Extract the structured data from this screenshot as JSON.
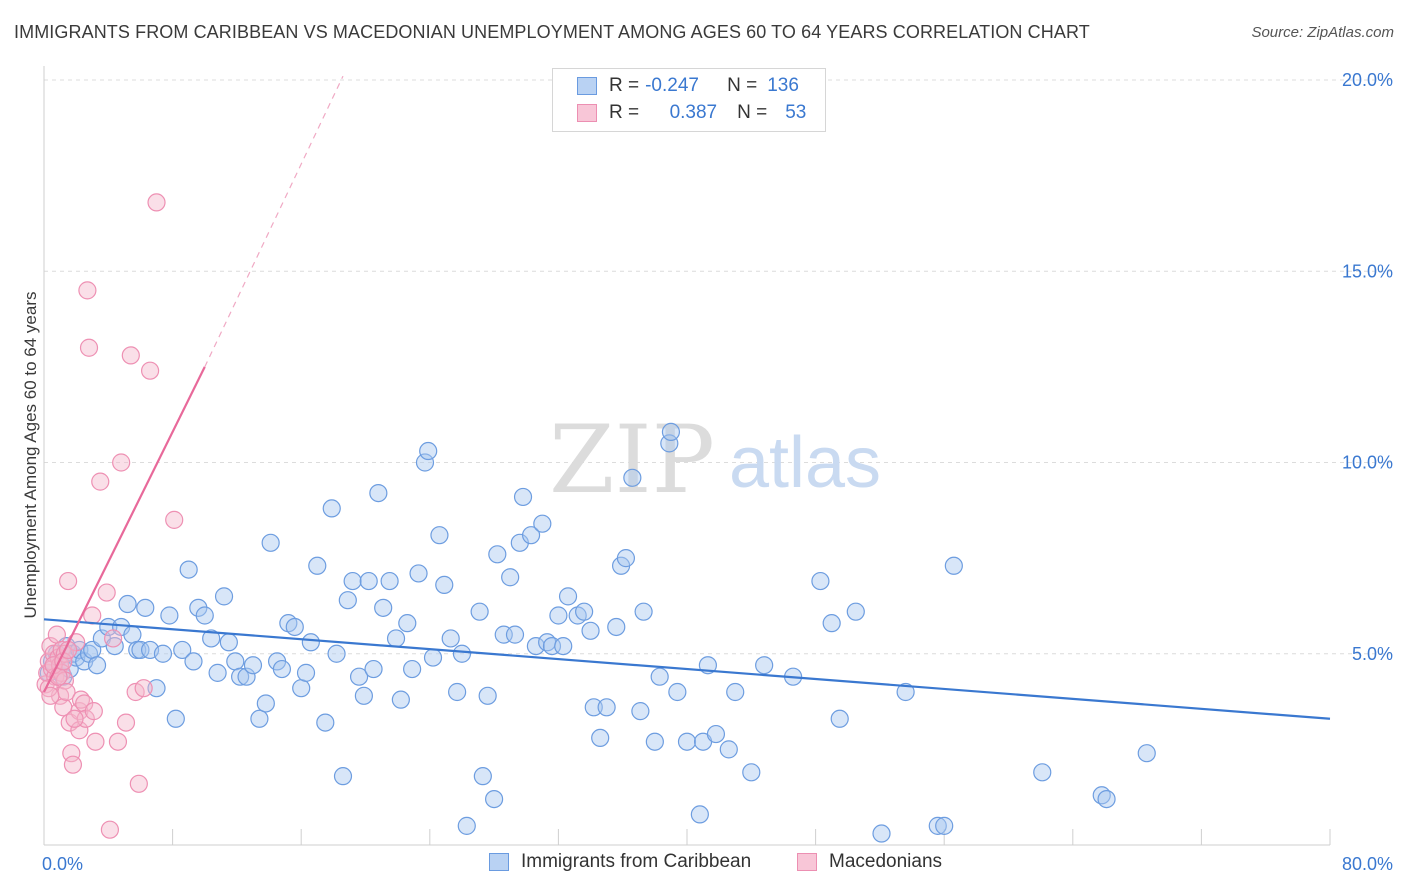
{
  "title": "IMMIGRANTS FROM CARIBBEAN VS MACEDONIAN UNEMPLOYMENT AMONG AGES 60 TO 64 YEARS CORRELATION CHART",
  "source": "Source: ZipAtlas.com",
  "watermark": {
    "zip": "ZIP",
    "atlas": "atlas"
  },
  "legend_top": {
    "rows": [
      {
        "r_label": "R =",
        "r_value": "-0.247",
        "n_label": "N =",
        "n_value": "136"
      },
      {
        "r_label": "R =",
        "r_value": "0.387",
        "n_label": "N =",
        "n_value": "53"
      }
    ]
  },
  "colors": {
    "blue": "#3a78d0",
    "blue_fill": "#a9c7f0",
    "pink": "#e8699a",
    "pink_fill": "#f5b8cc",
    "grid": "#dcdcdc",
    "axis_text": "#3a78d0"
  },
  "chart_data": {
    "type": "scatter",
    "title": "IMMIGRANTS FROM CARIBBEAN VS MACEDONIAN UNEMPLOYMENT AMONG AGES 60 TO 64 YEARS CORRELATION CHART",
    "xlabel": "",
    "ylabel": "Unemployment Among Ages 60 to 64 years",
    "xlim": [
      0,
      80
    ],
    "ylim": [
      0,
      20
    ],
    "x_tick_labels": [
      "0.0%",
      "80.0%"
    ],
    "y_tick_labels": [
      "5.0%",
      "10.0%",
      "15.0%",
      "20.0%"
    ],
    "y_ticks": [
      5,
      10,
      15,
      20
    ],
    "series": [
      {
        "name": "Immigrants from Caribbean",
        "R": -0.247,
        "N": 136,
        "trend": {
          "x": [
            0,
            80
          ],
          "y": [
            5.9,
            3.3
          ]
        },
        "points": [
          [
            0.3,
            4.5
          ],
          [
            0.5,
            4.8
          ],
          [
            0.8,
            5.0
          ],
          [
            1.0,
            4.7
          ],
          [
            1.2,
            4.4
          ],
          [
            1.4,
            5.2
          ],
          [
            1.6,
            4.6
          ],
          [
            1.8,
            5.0
          ],
          [
            2.0,
            4.9
          ],
          [
            2.2,
            5.1
          ],
          [
            2.5,
            4.8
          ],
          [
            2.8,
            5.0
          ],
          [
            3.0,
            5.1
          ],
          [
            3.3,
            4.7
          ],
          [
            3.6,
            5.4
          ],
          [
            4.0,
            5.7
          ],
          [
            4.4,
            5.2
          ],
          [
            4.8,
            5.7
          ],
          [
            5.2,
            6.3
          ],
          [
            5.5,
            5.5
          ],
          [
            5.8,
            5.1
          ],
          [
            6.0,
            5.1
          ],
          [
            6.3,
            6.2
          ],
          [
            6.6,
            5.1
          ],
          [
            7.0,
            4.1
          ],
          [
            7.4,
            5.0
          ],
          [
            7.8,
            6.0
          ],
          [
            8.2,
            3.3
          ],
          [
            8.6,
            5.1
          ],
          [
            9.0,
            7.2
          ],
          [
            9.3,
            4.8
          ],
          [
            9.6,
            6.2
          ],
          [
            10.0,
            6.0
          ],
          [
            10.4,
            5.4
          ],
          [
            10.8,
            4.5
          ],
          [
            11.2,
            6.5
          ],
          [
            11.5,
            5.3
          ],
          [
            11.9,
            4.8
          ],
          [
            12.2,
            4.4
          ],
          [
            12.6,
            4.4
          ],
          [
            13.0,
            4.7
          ],
          [
            13.4,
            3.3
          ],
          [
            13.8,
            3.7
          ],
          [
            14.1,
            7.9
          ],
          [
            14.5,
            4.8
          ],
          [
            14.8,
            4.6
          ],
          [
            15.2,
            5.8
          ],
          [
            15.6,
            5.7
          ],
          [
            16.0,
            4.1
          ],
          [
            16.3,
            4.5
          ],
          [
            16.6,
            5.3
          ],
          [
            17.0,
            7.3
          ],
          [
            17.5,
            3.2
          ],
          [
            17.9,
            8.8
          ],
          [
            18.2,
            5.0
          ],
          [
            18.6,
            1.8
          ],
          [
            18.9,
            6.4
          ],
          [
            19.2,
            6.9
          ],
          [
            19.6,
            4.4
          ],
          [
            19.9,
            3.9
          ],
          [
            20.2,
            6.9
          ],
          [
            20.5,
            4.6
          ],
          [
            20.8,
            9.2
          ],
          [
            21.1,
            6.2
          ],
          [
            21.5,
            6.9
          ],
          [
            21.9,
            5.4
          ],
          [
            22.2,
            3.8
          ],
          [
            22.6,
            5.8
          ],
          [
            22.9,
            4.6
          ],
          [
            23.3,
            7.1
          ],
          [
            23.7,
            10.0
          ],
          [
            23.9,
            10.3
          ],
          [
            24.2,
            4.9
          ],
          [
            24.6,
            8.1
          ],
          [
            24.9,
            6.8
          ],
          [
            25.3,
            5.4
          ],
          [
            25.7,
            4.0
          ],
          [
            26.0,
            5.0
          ],
          [
            26.3,
            0.5
          ],
          [
            27.1,
            6.1
          ],
          [
            27.3,
            1.8
          ],
          [
            27.6,
            3.9
          ],
          [
            28.0,
            1.2
          ],
          [
            28.2,
            7.6
          ],
          [
            28.6,
            5.5
          ],
          [
            29.0,
            7.0
          ],
          [
            29.3,
            5.5
          ],
          [
            29.6,
            7.9
          ],
          [
            29.8,
            9.1
          ],
          [
            30.3,
            8.1
          ],
          [
            30.6,
            5.2
          ],
          [
            31.0,
            8.4
          ],
          [
            31.3,
            5.3
          ],
          [
            31.6,
            5.2
          ],
          [
            32.0,
            6.0
          ],
          [
            32.3,
            5.2
          ],
          [
            32.6,
            6.5
          ],
          [
            33.2,
            6.0
          ],
          [
            33.6,
            6.1
          ],
          [
            34.0,
            5.6
          ],
          [
            34.2,
            3.6
          ],
          [
            34.6,
            2.8
          ],
          [
            35.0,
            3.6
          ],
          [
            35.6,
            5.7
          ],
          [
            35.9,
            7.3
          ],
          [
            36.2,
            7.5
          ],
          [
            36.6,
            9.6
          ],
          [
            37.1,
            3.5
          ],
          [
            37.3,
            6.1
          ],
          [
            38.0,
            2.7
          ],
          [
            38.3,
            4.4
          ],
          [
            38.9,
            10.5
          ],
          [
            39.0,
            10.8
          ],
          [
            39.4,
            4.0
          ],
          [
            40.0,
            2.7
          ],
          [
            40.8,
            0.8
          ],
          [
            41.0,
            2.7
          ],
          [
            41.3,
            4.7
          ],
          [
            41.8,
            2.9
          ],
          [
            42.6,
            2.5
          ],
          [
            43.0,
            4.0
          ],
          [
            44.0,
            1.9
          ],
          [
            44.8,
            4.7
          ],
          [
            46.6,
            4.4
          ],
          [
            48.3,
            6.9
          ],
          [
            49.0,
            5.8
          ],
          [
            49.5,
            3.3
          ],
          [
            50.5,
            6.1
          ],
          [
            52.1,
            0.3
          ],
          [
            53.6,
            4.0
          ],
          [
            55.6,
            0.5
          ],
          [
            56.0,
            0.5
          ],
          [
            56.6,
            7.3
          ],
          [
            62.1,
            1.9
          ],
          [
            65.8,
            1.3
          ],
          [
            66.1,
            1.2
          ],
          [
            68.6,
            2.4
          ]
        ]
      },
      {
        "name": "Macedonians",
        "R": 0.387,
        "N": 53,
        "trend": {
          "x": [
            0,
            10
          ],
          "y": [
            4.0,
            12.5
          ],
          "dashed_extension": {
            "x": [
              10,
              18.6
            ],
            "y": [
              12.5,
              20.1
            ]
          }
        },
        "points": [
          [
            0.1,
            4.2
          ],
          [
            0.2,
            4.5
          ],
          [
            0.3,
            4.8
          ],
          [
            0.4,
            5.2
          ],
          [
            0.5,
            4.6
          ],
          [
            0.6,
            5.0
          ],
          [
            0.7,
            4.4
          ],
          [
            0.8,
            5.5
          ],
          [
            0.9,
            4.9
          ],
          [
            1.0,
            3.9
          ],
          [
            1.0,
            4.7
          ],
          [
            1.1,
            5.1
          ],
          [
            1.1,
            4.5
          ],
          [
            1.2,
            3.6
          ],
          [
            1.3,
            4.3
          ],
          [
            1.3,
            5.0
          ],
          [
            1.4,
            4.0
          ],
          [
            1.5,
            6.9
          ],
          [
            1.6,
            3.2
          ],
          [
            1.7,
            2.4
          ],
          [
            1.8,
            2.1
          ],
          [
            2.0,
            5.3
          ],
          [
            2.2,
            3.0
          ],
          [
            2.2,
            3.5
          ],
          [
            2.3,
            3.8
          ],
          [
            2.5,
            3.7
          ],
          [
            2.6,
            3.3
          ],
          [
            2.7,
            14.5
          ],
          [
            2.8,
            13.0
          ],
          [
            3.0,
            6.0
          ],
          [
            3.1,
            3.5
          ],
          [
            3.2,
            2.7
          ],
          [
            3.5,
            9.5
          ],
          [
            3.9,
            6.6
          ],
          [
            4.1,
            0.4
          ],
          [
            4.3,
            5.4
          ],
          [
            4.6,
            2.7
          ],
          [
            4.8,
            10.0
          ],
          [
            5.1,
            3.2
          ],
          [
            5.4,
            12.8
          ],
          [
            5.7,
            4.0
          ],
          [
            5.9,
            1.6
          ],
          [
            6.2,
            4.1
          ],
          [
            6.6,
            12.4
          ],
          [
            7.0,
            16.8
          ],
          [
            8.1,
            8.5
          ],
          [
            0.3,
            4.1
          ],
          [
            0.6,
            4.7
          ],
          [
            0.9,
            4.4
          ],
          [
            1.2,
            4.8
          ],
          [
            1.5,
            5.1
          ],
          [
            0.4,
            3.9
          ],
          [
            1.9,
            3.3
          ]
        ]
      }
    ]
  },
  "bottom_legend": {
    "items": [
      "Immigrants from Caribbean",
      "Macedonians"
    ]
  }
}
